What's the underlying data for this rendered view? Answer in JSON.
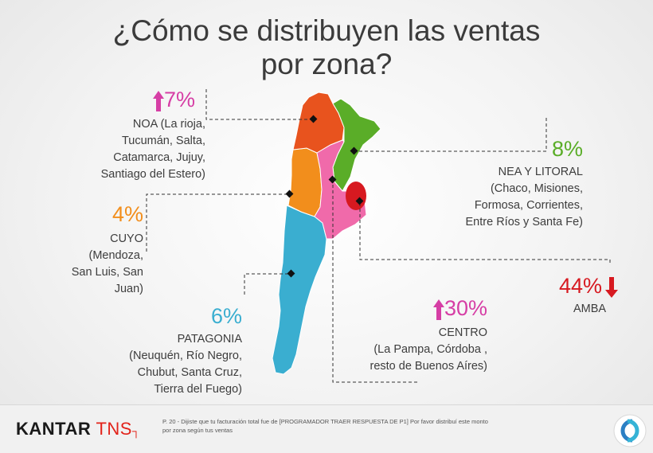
{
  "title": {
    "line1": "¿Cómo se distribuyen las ventas",
    "line2": "por zona?"
  },
  "colors": {
    "noa": "#e8531e",
    "nea": "#5aad28",
    "cuyo": "#f28e1c",
    "centro": "#f06aaa",
    "patagonia": "#3aaed0",
    "amba": "#d71920",
    "up": "#d63ea5",
    "down": "#d71920"
  },
  "regions": {
    "noa": {
      "pct": "7%",
      "trend": "up",
      "name": "NOA (La rioja,",
      "lines": [
        "Tucumán, Salta,",
        "Catamarca, Jujuy,",
        "Santiago del Estero)"
      ]
    },
    "nea": {
      "pct": "8%",
      "name": "NEA Y LITORAL",
      "lines": [
        "(Chaco, Misiones,",
        "Formosa, Corrientes,",
        "Entre Ríos y Santa Fe)"
      ]
    },
    "cuyo": {
      "pct": "4%",
      "name": "CUYO",
      "lines": [
        "(Mendoza,",
        "San Luis, San",
        "Juan)"
      ]
    },
    "amba": {
      "pct": "44%",
      "trend": "down",
      "name": "AMBA"
    },
    "patagonia": {
      "pct": "6%",
      "name": "PATAGONIA",
      "lines": [
        "(Neuquén, Río Negro,",
        "Chubut, Santa Cruz,",
        "Tierra del Fuego)"
      ]
    },
    "centro": {
      "pct": "30%",
      "trend": "up",
      "name": "CENTRO",
      "lines": [
        "(La Pampa, Córdoba ,",
        "resto de Buenos Aíres)"
      ]
    }
  },
  "footer": {
    "logo_main": "KANTAR",
    "logo_accent": "TNS",
    "note": "P. 20 - Dijiste que tu facturación total fue de [PROGRAMADOR TRAER RESPUESTA DE P1] Por favor distribuí este monto por zona según tus ventas"
  }
}
